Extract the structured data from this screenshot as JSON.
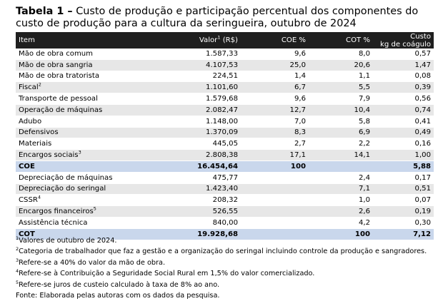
{
  "title": {
    "lead": "Tabela 1 –",
    "text": "Custo de produção e participação percentual dos componentes do custo de produção para a cultura da seringueira, outubro de 2024"
  },
  "table": {
    "headers": {
      "item": "Item",
      "valor": "Valor",
      "valor_sup": "1",
      "valor_unit": "(R$)",
      "coe": "COE %",
      "cot": "COT %",
      "custo_line1": "Custo",
      "custo_line2": "kg de coágulo"
    },
    "rows": [
      {
        "item": "Mão de obra comum",
        "sup": "",
        "valor": "1.587,33",
        "coe": "9,6",
        "cot": "8,0",
        "custo": "0,57",
        "style": "odd"
      },
      {
        "item": "Mão de obra sangria",
        "sup": "",
        "valor": "4.107,53",
        "coe": "25,0",
        "cot": "20,6",
        "custo": "1,47",
        "style": "even"
      },
      {
        "item": "Mão de obra tratorista",
        "sup": "",
        "valor": "224,51",
        "coe": "1,4",
        "cot": "1,1",
        "custo": "0,08",
        "style": "odd"
      },
      {
        "item": "Fiscal",
        "sup": "2",
        "valor": "1.101,60",
        "coe": "6,7",
        "cot": "5,5",
        "custo": "0,39",
        "style": "even"
      },
      {
        "item": "Transporte de pessoal",
        "sup": "",
        "valor": "1.579,68",
        "coe": "9,6",
        "cot": "7,9",
        "custo": "0,56",
        "style": "odd"
      },
      {
        "item": "Operação de máquinas",
        "sup": "",
        "valor": "2.082,47",
        "coe": "12,7",
        "cot": "10,4",
        "custo": "0,74",
        "style": "even"
      },
      {
        "item": "Adubo",
        "sup": "",
        "valor": "1.148,00",
        "coe": "7,0",
        "cot": "5,8",
        "custo": "0,41",
        "style": "odd"
      },
      {
        "item": "Defensivos",
        "sup": "",
        "valor": "1.370,09",
        "coe": "8,3",
        "cot": "6,9",
        "custo": "0,49",
        "style": "even"
      },
      {
        "item": "Materiais",
        "sup": "",
        "valor": "445,05",
        "coe": "2,7",
        "cot": "2,2",
        "custo": "0,16",
        "style": "odd"
      },
      {
        "item": "Encargos sociais",
        "sup": "3",
        "valor": "2.808,38",
        "coe": "17,1",
        "cot": "14,1",
        "custo": "1,00",
        "style": "even"
      },
      {
        "item": "COE",
        "sup": "",
        "valor": "16.454,64",
        "coe": "100",
        "cot": "",
        "custo": "5,88",
        "style": "total"
      },
      {
        "item": "Depreciação de máquinas",
        "sup": "",
        "valor": "475,77",
        "coe": "",
        "cot": "2,4",
        "custo": "0,17",
        "style": "odd"
      },
      {
        "item": "Depreciação do seringal",
        "sup": "",
        "valor": "1.423,40",
        "coe": "",
        "cot": "7,1",
        "custo": "0,51",
        "style": "even"
      },
      {
        "item": "CSSR",
        "sup": "4",
        "valor": "208,32",
        "coe": "",
        "cot": "1,0",
        "custo": "0,07",
        "style": "odd"
      },
      {
        "item": "Encargos financeiros",
        "sup": "5",
        "valor": "526,55",
        "coe": "",
        "cot": "2,6",
        "custo": "0,19",
        "style": "even"
      },
      {
        "item": "Assistência técnica",
        "sup": "",
        "valor": "840,00",
        "coe": "",
        "cot": "4,2",
        "custo": "0,30",
        "style": "odd"
      },
      {
        "item": "COT",
        "sup": "",
        "valor": "19.928,68",
        "coe": "",
        "cot": "100",
        "custo": "7,12",
        "style": "total"
      }
    ]
  },
  "notes": [
    {
      "sup": "1",
      "text": "Valores de outubro de 2024."
    },
    {
      "sup": "2",
      "text": "Categoria de trabalhador que faz a gestão e a organização do seringal incluindo controle da produção e sangradores."
    },
    {
      "sup": "3",
      "text": "Refere-se a 40% do valor da mão de obra."
    },
    {
      "sup": "4",
      "text": "Refere-se à Contribuição a Seguridade Social Rural em 1,5% do valor comercializado."
    },
    {
      "sup": "5",
      "text": "Refere-se juros de custeio calculado à taxa de 8% ao ano."
    },
    {
      "sup": "",
      "text": "Fonte: Elaborada pelas autoras com os dados da pesquisa."
    }
  ],
  "colors": {
    "header_bg": "#1f1f1f",
    "stripe": "#e7e7e7",
    "total_bg": "#c9d7ec"
  }
}
